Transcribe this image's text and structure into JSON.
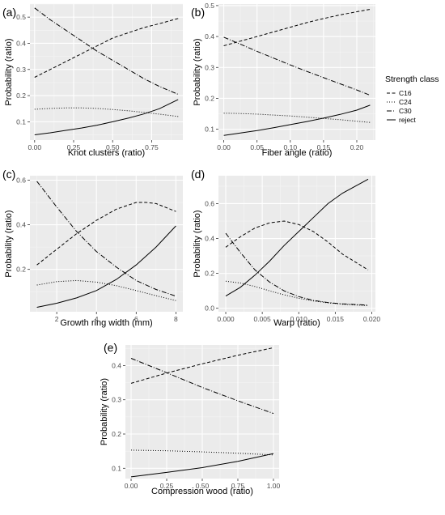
{
  "legend": {
    "title": "Strength class",
    "entries": [
      {
        "name": "C16",
        "dash": "4,2.5"
      },
      {
        "name": "C24",
        "dash": "1,2"
      },
      {
        "name": "C30",
        "dash": "6,2,1,2"
      },
      {
        "name": "reject",
        "dash": ""
      }
    ]
  },
  "chart_data": [
    {
      "panel": "(a)",
      "type": "line",
      "xlabel": "Knot clusters (ratio)",
      "ylabel": "Probability (ratio)",
      "xlim": [
        -0.03,
        0.95
      ],
      "ylim": [
        0.03,
        0.55
      ],
      "xticks": [
        0.0,
        0.25,
        0.5,
        0.75
      ],
      "xtick_labels": [
        "0.00",
        "0.25",
        "0.50",
        "0.75"
      ],
      "yticks": [
        0.1,
        0.2,
        0.3,
        0.4,
        0.5
      ],
      "ytick_labels": [
        "0.1",
        "0.2",
        "0.3",
        "0.4",
        "0.5"
      ],
      "grid": true,
      "series": [
        {
          "name": "C16",
          "x": [
            0,
            0.1,
            0.2,
            0.3,
            0.4,
            0.5,
            0.6,
            0.7,
            0.8,
            0.92
          ],
          "y": [
            0.27,
            0.3,
            0.33,
            0.36,
            0.39,
            0.42,
            0.44,
            0.46,
            0.475,
            0.495
          ]
        },
        {
          "name": "C24",
          "x": [
            0,
            0.1,
            0.2,
            0.3,
            0.4,
            0.5,
            0.6,
            0.7,
            0.8,
            0.92
          ],
          "y": [
            0.148,
            0.151,
            0.153,
            0.153,
            0.151,
            0.147,
            0.142,
            0.136,
            0.129,
            0.12
          ]
        },
        {
          "name": "C30",
          "x": [
            0,
            0.1,
            0.2,
            0.3,
            0.4,
            0.5,
            0.6,
            0.7,
            0.8,
            0.92
          ],
          "y": [
            0.535,
            0.49,
            0.45,
            0.41,
            0.37,
            0.335,
            0.3,
            0.265,
            0.235,
            0.205
          ]
        },
        {
          "name": "reject",
          "x": [
            0,
            0.1,
            0.2,
            0.3,
            0.4,
            0.5,
            0.6,
            0.7,
            0.8,
            0.92
          ],
          "y": [
            0.05,
            0.058,
            0.067,
            0.076,
            0.087,
            0.1,
            0.114,
            0.13,
            0.15,
            0.185
          ]
        }
      ]
    },
    {
      "panel": "(b)",
      "type": "line",
      "xlabel": "Fiber angle (ratio)",
      "ylabel": "Probability (ratio)",
      "xlim": [
        -0.008,
        0.228
      ],
      "ylim": [
        0.065,
        0.505
      ],
      "xticks": [
        0.0,
        0.05,
        0.1,
        0.15,
        0.2
      ],
      "xtick_labels": [
        "0.00",
        "0.05",
        "0.10",
        "0.15",
        "0.20"
      ],
      "yticks": [
        0.1,
        0.2,
        0.3,
        0.4,
        0.5
      ],
      "ytick_labels": [
        "0.1",
        "0.2",
        "0.3",
        "0.4",
        "0.5"
      ],
      "grid": true,
      "series": [
        {
          "name": "C16",
          "x": [
            0,
            0.025,
            0.05,
            0.075,
            0.1,
            0.125,
            0.15,
            0.175,
            0.2,
            0.22
          ],
          "y": [
            0.37,
            0.385,
            0.4,
            0.415,
            0.43,
            0.445,
            0.458,
            0.47,
            0.48,
            0.488
          ]
        },
        {
          "name": "C24",
          "x": [
            0,
            0.025,
            0.05,
            0.075,
            0.1,
            0.125,
            0.15,
            0.175,
            0.2,
            0.22
          ],
          "y": [
            0.152,
            0.151,
            0.149,
            0.146,
            0.143,
            0.139,
            0.135,
            0.131,
            0.126,
            0.122
          ]
        },
        {
          "name": "C30",
          "x": [
            0,
            0.025,
            0.05,
            0.075,
            0.1,
            0.125,
            0.15,
            0.175,
            0.2,
            0.22
          ],
          "y": [
            0.398,
            0.375,
            0.352,
            0.33,
            0.308,
            0.287,
            0.267,
            0.247,
            0.227,
            0.21
          ]
        },
        {
          "name": "reject",
          "x": [
            0,
            0.025,
            0.05,
            0.075,
            0.1,
            0.125,
            0.15,
            0.175,
            0.2,
            0.22
          ],
          "y": [
            0.08,
            0.088,
            0.096,
            0.105,
            0.115,
            0.125,
            0.136,
            0.148,
            0.162,
            0.178
          ]
        }
      ]
    },
    {
      "panel": "(c)",
      "type": "line",
      "xlabel": "Growth ring width (mm)",
      "ylabel": "Probability (ratio)",
      "xlim": [
        0.65,
        8.35
      ],
      "ylim": [
        0.01,
        0.62
      ],
      "xticks": [
        2,
        4,
        6,
        8
      ],
      "xtick_labels": [
        "2",
        "4",
        "6",
        "8"
      ],
      "yticks": [
        0.2,
        0.4,
        0.6
      ],
      "ytick_labels": [
        "0.2",
        "0.4",
        "0.6"
      ],
      "grid": true,
      "series": [
        {
          "name": "C16",
          "x": [
            1,
            2,
            3,
            4,
            5,
            6,
            6.5,
            7,
            8
          ],
          "y": [
            0.22,
            0.29,
            0.36,
            0.42,
            0.47,
            0.5,
            0.5,
            0.495,
            0.46
          ]
        },
        {
          "name": "C24",
          "x": [
            1,
            2,
            3,
            4,
            5,
            6,
            7,
            8
          ],
          "y": [
            0.13,
            0.145,
            0.15,
            0.143,
            0.127,
            0.105,
            0.082,
            0.06
          ]
        },
        {
          "name": "C30",
          "x": [
            1,
            2,
            3,
            4,
            5,
            6,
            7,
            8
          ],
          "y": [
            0.595,
            0.48,
            0.37,
            0.28,
            0.21,
            0.15,
            0.11,
            0.08
          ]
        },
        {
          "name": "reject",
          "x": [
            1,
            2,
            3,
            4,
            5,
            6,
            7,
            8
          ],
          "y": [
            0.03,
            0.048,
            0.072,
            0.105,
            0.155,
            0.22,
            0.3,
            0.395
          ]
        }
      ]
    },
    {
      "panel": "(d)",
      "type": "line",
      "xlabel": "Warp (ratio)",
      "ylabel": "Probability (ratio)",
      "xlim": [
        -0.001,
        0.0205
      ],
      "ylim": [
        -0.02,
        0.76
      ],
      "xticks": [
        0.0,
        0.005,
        0.01,
        0.015,
        0.02
      ],
      "xtick_labels": [
        "0.000",
        "0.005",
        "0.010",
        "0.015",
        "0.020"
      ],
      "yticks": [
        0.0,
        0.2,
        0.4,
        0.6
      ],
      "ytick_labels": [
        "0.0",
        "0.2",
        "0.4",
        "0.6"
      ],
      "grid": true,
      "series": [
        {
          "name": "C16",
          "x": [
            0,
            0.002,
            0.004,
            0.006,
            0.008,
            0.01,
            0.012,
            0.014,
            0.016,
            0.0195
          ],
          "y": [
            0.35,
            0.41,
            0.46,
            0.49,
            0.5,
            0.48,
            0.44,
            0.38,
            0.31,
            0.22
          ]
        },
        {
          "name": "C24",
          "x": [
            0,
            0.002,
            0.004,
            0.006,
            0.008,
            0.01,
            0.012,
            0.014,
            0.016,
            0.0195
          ],
          "y": [
            0.155,
            0.145,
            0.125,
            0.1,
            0.077,
            0.057,
            0.042,
            0.031,
            0.023,
            0.015
          ]
        },
        {
          "name": "C30",
          "x": [
            0,
            0.002,
            0.004,
            0.006,
            0.008,
            0.01,
            0.012,
            0.014,
            0.016,
            0.0195
          ],
          "y": [
            0.43,
            0.32,
            0.22,
            0.15,
            0.1,
            0.067,
            0.045,
            0.033,
            0.025,
            0.018
          ]
        },
        {
          "name": "reject",
          "x": [
            0,
            0.002,
            0.004,
            0.006,
            0.008,
            0.01,
            0.012,
            0.014,
            0.016,
            0.0195
          ],
          "y": [
            0.07,
            0.12,
            0.19,
            0.27,
            0.36,
            0.44,
            0.52,
            0.6,
            0.66,
            0.74
          ]
        }
      ]
    },
    {
      "panel": "(e)",
      "type": "line",
      "xlabel": "Compression wood (ratio)",
      "ylabel": "Probability (ratio)",
      "xlim": [
        -0.04,
        1.04
      ],
      "ylim": [
        0.07,
        0.46
      ],
      "xticks": [
        0.0,
        0.25,
        0.5,
        0.75,
        1.0
      ],
      "xtick_labels": [
        "0.00",
        "0.25",
        "0.50",
        "0.75",
        "1.00"
      ],
      "yticks": [
        0.1,
        0.2,
        0.3,
        0.4
      ],
      "ytick_labels": [
        "0.1",
        "0.2",
        "0.3",
        "0.4"
      ],
      "grid": true,
      "series": [
        {
          "name": "C16",
          "x": [
            0,
            0.25,
            0.5,
            0.75,
            1.0
          ],
          "y": [
            0.348,
            0.378,
            0.405,
            0.43,
            0.452
          ]
        },
        {
          "name": "C24",
          "x": [
            0,
            0.25,
            0.5,
            0.75,
            1.0
          ],
          "y": [
            0.153,
            0.151,
            0.148,
            0.144,
            0.139
          ]
        },
        {
          "name": "C30",
          "x": [
            0,
            0.25,
            0.5,
            0.75,
            1.0
          ],
          "y": [
            0.421,
            0.379,
            0.336,
            0.297,
            0.26
          ]
        },
        {
          "name": "reject",
          "x": [
            0,
            0.25,
            0.5,
            0.75,
            1.0
          ],
          "y": [
            0.075,
            0.088,
            0.102,
            0.12,
            0.143
          ]
        }
      ]
    }
  ]
}
